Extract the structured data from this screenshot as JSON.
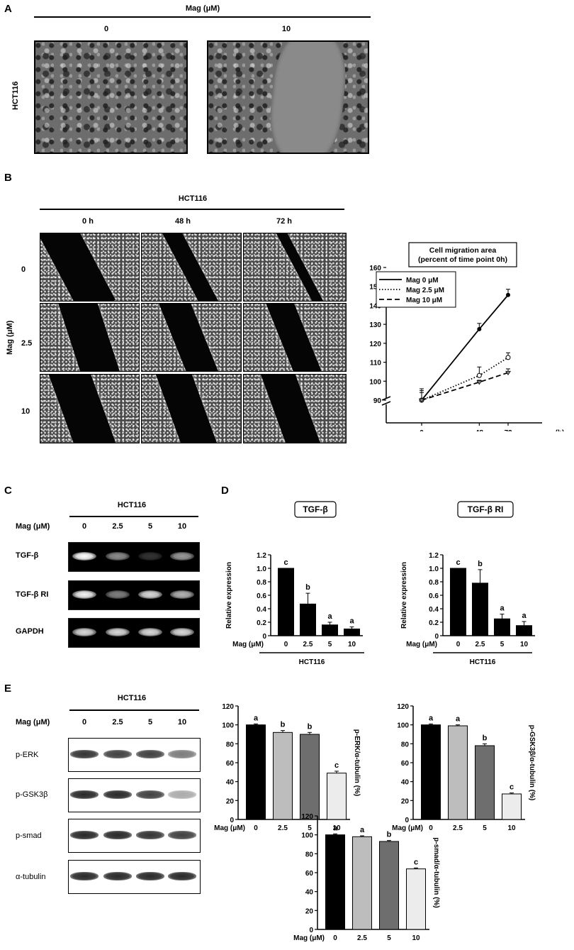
{
  "panelA": {
    "letter": "A",
    "header": "Mag (μM)",
    "columns": [
      "0",
      "10"
    ],
    "row_label": "HCT116"
  },
  "panelB": {
    "letter": "B",
    "header": "HCT116",
    "columns": [
      "0 h",
      "48 h",
      "72 h"
    ],
    "row_axis_label": "Mag (μM)",
    "rows": [
      "0",
      "2.5",
      "10"
    ]
  },
  "panelC": {
    "letter": "C",
    "header": "HCT116",
    "mag_label": "Mag (μM)",
    "lanes": [
      "0",
      "2.5",
      "5",
      "10"
    ],
    "rows": [
      "TGF-β",
      "TGF-β RI",
      "GAPDH"
    ],
    "band_intensity": [
      [
        1.0,
        0.55,
        0.2,
        0.6
      ],
      [
        0.95,
        0.5,
        0.85,
        0.7
      ],
      [
        0.85,
        0.85,
        0.85,
        0.85
      ]
    ]
  },
  "panelD": {
    "letter": "D"
  },
  "panelE": {
    "letter": "E",
    "header": "HCT116",
    "mag_label": "Mag (μM)",
    "lanes": [
      "0",
      "2.5",
      "5",
      "10"
    ],
    "rows": [
      "p-ERK",
      "p-GSK3β",
      "p-smad",
      "α-tubulin"
    ],
    "band_intensity": [
      [
        0.85,
        0.8,
        0.8,
        0.55
      ],
      [
        0.9,
        0.9,
        0.8,
        0.35
      ],
      [
        0.9,
        0.9,
        0.85,
        0.8
      ],
      [
        0.9,
        0.9,
        0.9,
        0.9
      ]
    ]
  },
  "chart_data": [
    {
      "id": "migration",
      "type": "line",
      "title": "Cell migration area\n(percent of time point 0h)",
      "x": [
        0,
        48,
        72
      ],
      "xticks": [
        "0",
        "48",
        "72"
      ],
      "xunit": "(h)",
      "ylim": [
        90,
        160
      ],
      "yticks": [
        90,
        100,
        110,
        120,
        130,
        140,
        150,
        160
      ],
      "axis_break": true,
      "legend": "top-left",
      "series": [
        {
          "name": "Mag 0 μM",
          "values": [
            90,
            127.5,
            145.5
          ],
          "errors": [
            6,
            3,
            3
          ],
          "style": "solid",
          "marker": "filled-circle"
        },
        {
          "name": "Mag 2.5 μM",
          "values": [
            90,
            103,
            112.5
          ],
          "errors": [
            5,
            4.5,
            2.5
          ],
          "style": "dotted",
          "marker": "open-circle"
        },
        {
          "name": "Mag 10 μM",
          "values": [
            90,
            99.5,
            104.5
          ],
          "errors": [
            4,
            1,
            2
          ],
          "style": "dashed",
          "marker": "triangle"
        }
      ]
    },
    {
      "id": "tgfb",
      "type": "bar",
      "title": "TGF-β",
      "categories": [
        "0",
        "2.5",
        "5",
        "10"
      ],
      "values": [
        1.0,
        0.47,
        0.16,
        0.1
      ],
      "errors": [
        0,
        0.16,
        0.04,
        0.03
      ],
      "letters": [
        "c",
        "b",
        "a",
        "a"
      ],
      "ylabel": "Relative expression",
      "ylim": [
        0,
        1.2
      ],
      "yticks": [
        "0",
        "0.2",
        "0.4",
        "0.6",
        "0.8",
        "1.0",
        "1.2"
      ],
      "xlabel_prefix": "Mag (μM)",
      "group_label": "HCT116",
      "colors": [
        "#000000",
        "#000000",
        "#000000",
        "#000000"
      ]
    },
    {
      "id": "tgfbri",
      "type": "bar",
      "title": "TGF-β RI",
      "categories": [
        "0",
        "2.5",
        "5",
        "10"
      ],
      "values": [
        1.0,
        0.78,
        0.25,
        0.15
      ],
      "errors": [
        0,
        0.2,
        0.07,
        0.06
      ],
      "letters": [
        "c",
        "b",
        "a",
        "a"
      ],
      "ylabel": "Relative expression",
      "ylim": [
        0,
        1.2
      ],
      "yticks": [
        "0",
        "0.2",
        "0.4",
        "0.6",
        "0.8",
        "1.0",
        "1.2"
      ],
      "xlabel_prefix": "Mag (μM)",
      "group_label": "HCT116",
      "colors": [
        "#000000",
        "#000000",
        "#000000",
        "#000000"
      ]
    },
    {
      "id": "perk",
      "type": "bar",
      "categories": [
        "0",
        "2.5",
        "5",
        "10"
      ],
      "values": [
        100,
        92,
        90,
        49
      ],
      "errors": [
        1,
        2,
        2,
        2
      ],
      "letters": [
        "a",
        "b",
        "b",
        "c"
      ],
      "ylabel": "p-ERK/α-tubulin (%)",
      "ylim": [
        0,
        120
      ],
      "yticks": [
        "0",
        "20",
        "40",
        "60",
        "80",
        "100",
        "120"
      ],
      "xlabel_prefix": "Mag (μM)",
      "colors": [
        "#000000",
        "#bdbdbd",
        "#6e6e6e",
        "#ececec"
      ]
    },
    {
      "id": "pgsk",
      "type": "bar",
      "categories": [
        "0",
        "2.5",
        "5",
        "10"
      ],
      "values": [
        100,
        99,
        78,
        27
      ],
      "errors": [
        1,
        1,
        2,
        1
      ],
      "letters": [
        "a",
        "a",
        "b",
        "c"
      ],
      "ylabel": "p-GSK3β/α-tubulin (%)",
      "ylim": [
        0,
        120
      ],
      "yticks": [
        "0",
        "20",
        "40",
        "60",
        "80",
        "100",
        "120"
      ],
      "xlabel_prefix": "Mag (μM)",
      "colors": [
        "#000000",
        "#bdbdbd",
        "#6e6e6e",
        "#ececec"
      ]
    },
    {
      "id": "psmad",
      "type": "bar",
      "categories": [
        "0",
        "2.5",
        "5",
        "10"
      ],
      "values": [
        100,
        98,
        93,
        64
      ],
      "errors": [
        1,
        1,
        1,
        1
      ],
      "letters": [
        "a",
        "a",
        "b",
        "c"
      ],
      "ylabel": "p-smad/α-tubulin (%)",
      "ylim": [
        0,
        120
      ],
      "yticks": [
        "0",
        "20",
        "40",
        "60",
        "80",
        "100",
        "120"
      ],
      "xlabel_prefix": "Mag (μM)",
      "colors": [
        "#000000",
        "#bdbdbd",
        "#6e6e6e",
        "#ececec"
      ]
    }
  ]
}
